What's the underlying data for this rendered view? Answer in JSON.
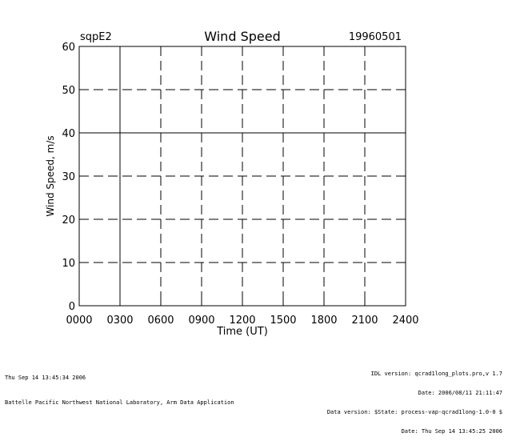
{
  "chart_data": {
    "type": "line",
    "site": "sqpE2",
    "title": "Wind Speed",
    "date": "19960501",
    "xlabel": "Time (UT)",
    "ylabel": "Wind Speed, m/s",
    "x_ticks": [
      "0000",
      "0300",
      "0600",
      "0900",
      "1200",
      "1500",
      "1800",
      "2100",
      "2400"
    ],
    "y_ticks": [
      "0",
      "10",
      "20",
      "30",
      "40",
      "50",
      "60"
    ],
    "xlim": [
      0,
      24
    ],
    "ylim": [
      0,
      60
    ],
    "grid": true,
    "series": []
  },
  "footer": {
    "left_line1": "Thu Sep 14 13:45:34 2006",
    "left_line2": "Battelle Pacific Northwest National Laboratory, Arm Data Application",
    "right_line1": "IDL version: qcrad1long_plots.pro,v 1.7",
    "right_line2": "Date: 2006/08/11 21:11:47",
    "right_line3": "Data version: $State: process-vap-qcrad1long-1.0-0 $",
    "right_line4": "Date: Thu Sep 14 13:45:25 2006"
  }
}
